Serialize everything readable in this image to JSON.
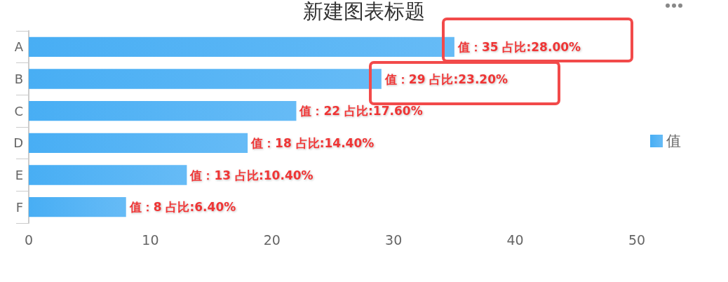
{
  "chart_data": {
    "type": "bar",
    "orientation": "horizontal",
    "title": "新建图表标题",
    "categories": [
      "A",
      "B",
      "C",
      "D",
      "E",
      "F"
    ],
    "series": [
      {
        "name": "值",
        "color": "#66bbf6",
        "values": [
          35,
          29,
          22,
          18,
          13,
          8
        ],
        "value_labels": [
          "值：35 占比:28.00%",
          "值：29 占比:23.20%",
          "值：22 占比:17.60%",
          "值：18 占比:14.40%",
          "值：13 占比:10.40%",
          "值：8 占比:6.40%"
        ]
      }
    ],
    "xlim": [
      0,
      50
    ],
    "xticks": [
      0,
      10,
      20,
      30,
      40,
      50
    ],
    "grid": false,
    "legend": "right"
  }
}
